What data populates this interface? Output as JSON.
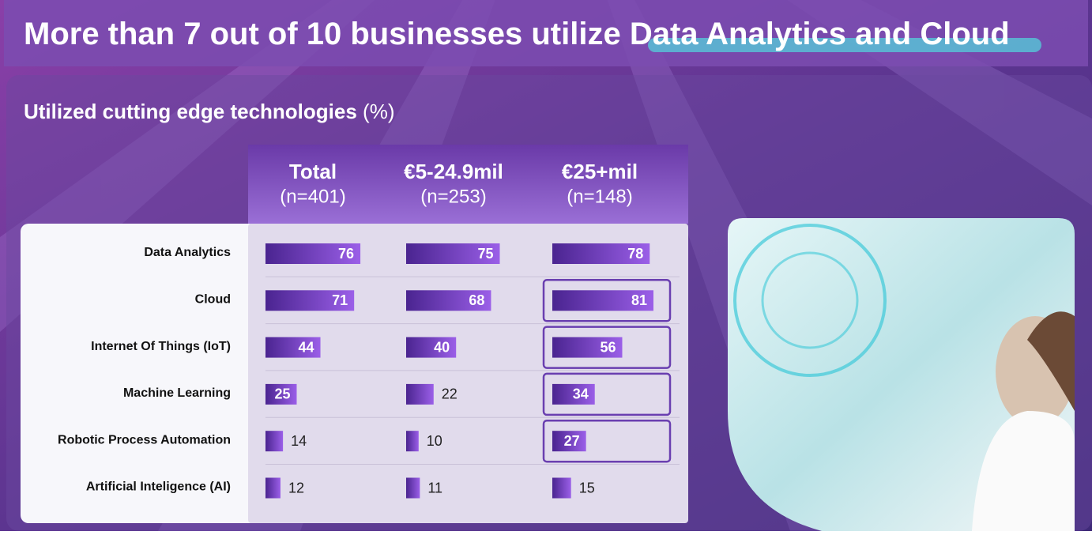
{
  "chart_data": {
    "type": "bar",
    "title": "More than 7 out of 10 businesses utilize",
    "title_highlight": "Data Analytics and Cloud",
    "subtitle": "Utilized cutting edge technologies",
    "unit": "(%)",
    "categories": [
      "Data Analytics",
      "Cloud",
      "Internet Of Things (IoT)",
      "Machine Learning",
      "Robotic Process Automation",
      "Artificial Inteligence (AI)"
    ],
    "series": [
      {
        "name": "Total",
        "sample": "(n=401)",
        "color": "#5b2fa0",
        "values": [
          76,
          71,
          44,
          25,
          14,
          12
        ]
      },
      {
        "name": "€5-24.9mil",
        "sample": "(n=253)",
        "color": "#5b2fa0",
        "values": [
          75,
          68,
          40,
          22,
          10,
          11
        ]
      },
      {
        "name": "€25+mil",
        "sample": "(n=148)",
        "color": "#5b2fa0",
        "values": [
          78,
          81,
          56,
          34,
          27,
          15
        ],
        "highlight": [
          false,
          true,
          true,
          true,
          true,
          false
        ]
      }
    ]
  }
}
